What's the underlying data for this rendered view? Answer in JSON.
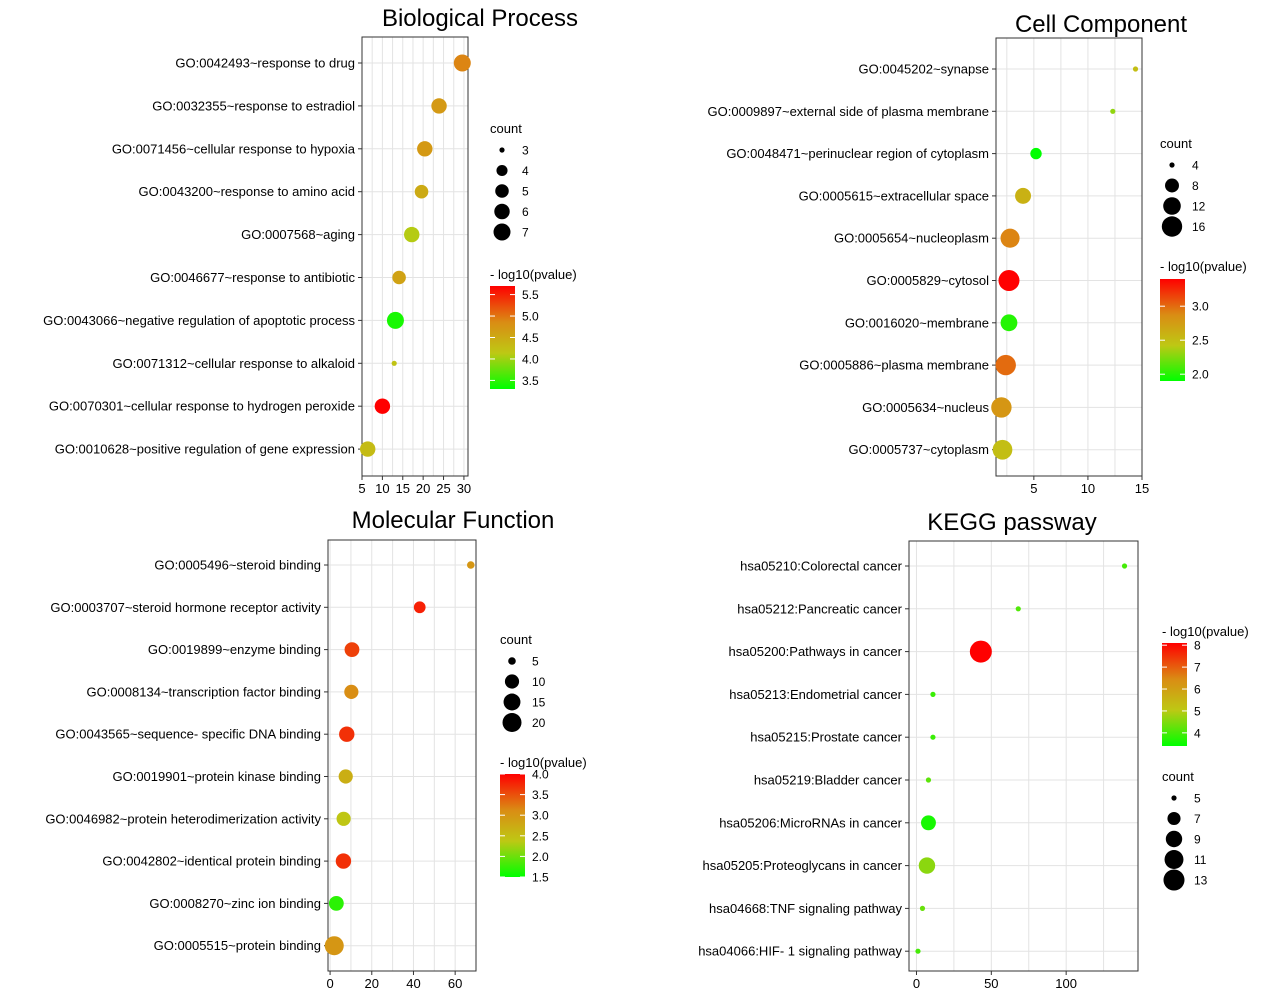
{
  "chart_data": [
    {
      "type": "scatter",
      "title": "Biological Process",
      "xlabel": "",
      "ylabel": "",
      "xlim": [
        5,
        31
      ],
      "xticks": [
        5,
        10,
        15,
        20,
        25,
        30
      ],
      "categories": [
        "GO:0042493~response to drug",
        "GO:0032355~response to estradiol",
        "GO:0071456~cellular response to hypoxia",
        "GO:0043200~response to amino acid",
        "GO:0007568~aging",
        "GO:0046677~response to antibiotic",
        "GO:0043066~negative regulation of apoptotic process",
        "GO:0071312~cellular response to alkaloid",
        "GO:0070301~cellular response to hydrogen peroxide",
        "GO:0010628~positive regulation of gene expression"
      ],
      "x": [
        29.6,
        23.9,
        20.4,
        19.6,
        17.2,
        14.1,
        13.2,
        12.9,
        10.0,
        6.4
      ],
      "count": [
        7,
        6,
        6,
        5,
        6,
        5,
        7,
        3,
        6,
        6
      ],
      "log10p": [
        4.9,
        4.7,
        4.7,
        4.5,
        4.1,
        4.6,
        3.4,
        4.2,
        5.7,
        4.3
      ],
      "legend_count": {
        "title": "count",
        "values": [
          3,
          4,
          5,
          6,
          7
        ]
      },
      "legend_color": {
        "title": "- log10(pvalue)",
        "range": [
          3.3,
          5.7
        ],
        "ticks": [
          "5.5",
          "5.0",
          "4.5",
          "4.0",
          "3.5"
        ],
        "tick_values": [
          5.5,
          5.0,
          4.5,
          4.0,
          3.5
        ]
      }
    },
    {
      "type": "scatter",
      "title": "Cell Component",
      "xlabel": "",
      "ylabel": "",
      "xlim": [
        1.5,
        15
      ],
      "xticks": [
        5,
        10,
        15
      ],
      "categories": [
        "GO:0045202~synapse",
        "GO:0009897~external side of plasma membrane",
        "GO:0048471~perinuclear region of cytoplasm",
        "GO:0005615~extracellular space",
        "GO:0005654~nucleoplasm",
        "GO:0005829~cytosol",
        "GO:0016020~membrane",
        "GO:0005886~plasma membrane",
        "GO:0005634~nucleus",
        "GO:0005737~cytoplasm"
      ],
      "x": [
        14.4,
        12.3,
        5.2,
        4.0,
        2.8,
        2.7,
        2.7,
        2.4,
        2.0,
        2.1
      ],
      "count": [
        4,
        4,
        6,
        10,
        14,
        17,
        11,
        16,
        16,
        15
      ],
      "log10p": [
        2.5,
        2.3,
        1.9,
        2.6,
        2.9,
        3.4,
        2.0,
        3.0,
        2.8,
        2.5
      ],
      "legend_count": {
        "title": "count",
        "values": [
          4,
          8,
          12,
          16
        ]
      },
      "legend_color": {
        "title": "- log10(pvalue)",
        "range": [
          1.9,
          3.4
        ],
        "ticks": [
          "3.0",
          "2.5",
          "2.0"
        ],
        "tick_values": [
          3.0,
          2.5,
          2.0
        ]
      }
    },
    {
      "type": "scatter",
      "title": "Molecular Function",
      "xlabel": "",
      "ylabel": "",
      "xlim": [
        -1,
        70
      ],
      "xticks": [
        0,
        20,
        40,
        60
      ],
      "categories": [
        "GO:0005496~steroid binding",
        "GO:0003707~steroid hormone receptor activity",
        "GO:0019899~enzyme binding",
        "GO:0008134~transcription factor binding",
        "GO:0043565~sequence- specific DNA binding",
        "GO:0019901~protein kinase binding",
        "GO:0046982~protein heterodimerization activity",
        "GO:0042802~identical protein binding",
        "GO:0008270~zinc ion binding",
        "GO:0005515~protein binding"
      ],
      "x": [
        67.5,
        43.0,
        10.5,
        10.2,
        8.0,
        7.5,
        6.5,
        6.4,
        3.0,
        2.0
      ],
      "count": [
        5,
        7,
        11,
        10,
        12,
        10,
        10,
        12,
        11,
        20
      ],
      "log10p": [
        3.0,
        3.8,
        3.6,
        3.1,
        3.7,
        2.7,
        2.4,
        3.7,
        1.7,
        3.0
      ],
      "legend_count": {
        "title": "count",
        "values": [
          5,
          10,
          15,
          20
        ]
      },
      "legend_color": {
        "title": "- log10(pvalue)",
        "range": [
          1.5,
          4.0
        ],
        "ticks": [
          "4.0",
          "3.5",
          "3.0",
          "2.5",
          "2.0",
          "1.5"
        ],
        "tick_values": [
          4.0,
          3.5,
          3.0,
          2.5,
          2.0,
          1.5
        ]
      }
    },
    {
      "type": "scatter",
      "title": "KEGG passway",
      "xlabel": "",
      "ylabel": "",
      "xlim": [
        -5,
        148
      ],
      "xticks": [
        0,
        50,
        100
      ],
      "categories": [
        "hsa05210:Colorectal cancer",
        "hsa05212:Pancreatic cancer",
        "hsa05200:Pathways in cancer",
        "hsa05213:Endometrial cancer",
        "hsa05215:Prostate cancer",
        "hsa05219:Bladder cancer",
        "hsa05206:MicroRNAs in cancer",
        "hsa05205:Proteoglycans in cancer",
        "hsa04668:TNF signaling pathway",
        "hsa04066:HIF- 1 signaling pathway"
      ],
      "x": [
        139,
        68,
        43,
        11,
        11,
        8,
        8,
        7,
        4,
        1
      ],
      "count": [
        5,
        5,
        14,
        5,
        5,
        5,
        8,
        9,
        5,
        5
      ],
      "log10p": [
        4.0,
        4.1,
        8.1,
        3.9,
        3.9,
        4.2,
        3.6,
        4.6,
        4.3,
        4.0
      ],
      "legend_count": {
        "title": "count",
        "values": [
          5,
          7,
          9,
          11,
          13
        ]
      },
      "legend_color": {
        "title": "- log10(pvalue)",
        "range": [
          3.4,
          8.1
        ],
        "ticks": [
          "8",
          "7",
          "6",
          "5",
          "4"
        ],
        "tick_values": [
          8,
          7,
          6,
          5,
          4
        ]
      }
    }
  ]
}
